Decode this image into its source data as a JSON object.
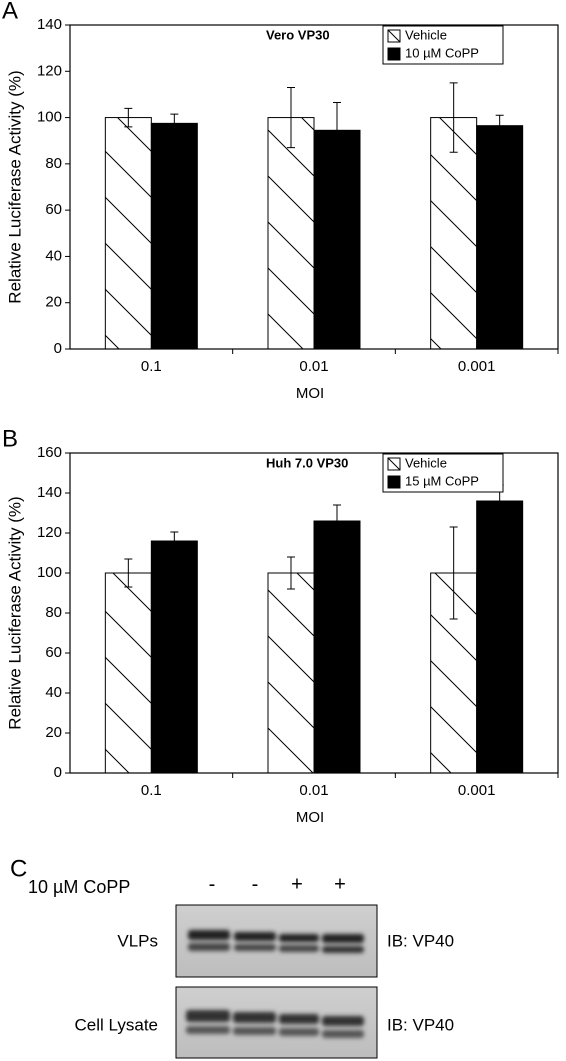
{
  "chart_data": [
    {
      "type": "bar",
      "panel_label": "A",
      "title": "Vero VP30",
      "x_label": "MOI",
      "y_label": "Relative Luciferase Activity (%)",
      "categories": [
        "0.1",
        "0.01",
        "0.001"
      ],
      "series": [
        {
          "name": "Vehicle",
          "color": "#ffffff",
          "hatch": true,
          "values": [
            100,
            100,
            100
          ],
          "errors": [
            4,
            13,
            15
          ]
        },
        {
          "name": "10 µM CoPP",
          "color": "#000000",
          "hatch": false,
          "values": [
            97.5,
            94.5,
            96.5
          ],
          "errors": [
            4,
            12,
            4.5
          ]
        }
      ],
      "ylim": [
        0,
        140
      ],
      "yticks": [
        0,
        20,
        40,
        60,
        80,
        100,
        120,
        140
      ],
      "grid": false,
      "legend": "top-right"
    },
    {
      "type": "bar",
      "panel_label": "B",
      "title": "Huh 7.0 VP30",
      "x_label": "MOI",
      "y_label": "Relative Luciferase Activity (%)",
      "categories": [
        "0.1",
        "0.01",
        "0.001"
      ],
      "series": [
        {
          "name": "Vehicle",
          "color": "#ffffff",
          "hatch": true,
          "values": [
            100,
            100,
            100
          ],
          "errors": [
            7,
            8,
            23
          ]
        },
        {
          "name": "15 µM CoPP",
          "color": "#000000",
          "hatch": false,
          "values": [
            116,
            126,
            136
          ],
          "errors": [
            4.5,
            8,
            8
          ]
        }
      ],
      "ylim": [
        0,
        160
      ],
      "yticks": [
        0,
        20,
        40,
        60,
        80,
        100,
        120,
        140,
        160
      ],
      "grid": false,
      "legend": "top-right"
    }
  ],
  "panel_c": {
    "label": "C",
    "treatment": "10 µM CoPP",
    "lanes": [
      "-",
      "-",
      "+",
      "+"
    ],
    "rows": [
      {
        "label": "VLPs",
        "antibody": "IB: VP40"
      },
      {
        "label": "Cell Lysate",
        "antibody": "IB: VP40"
      }
    ]
  }
}
